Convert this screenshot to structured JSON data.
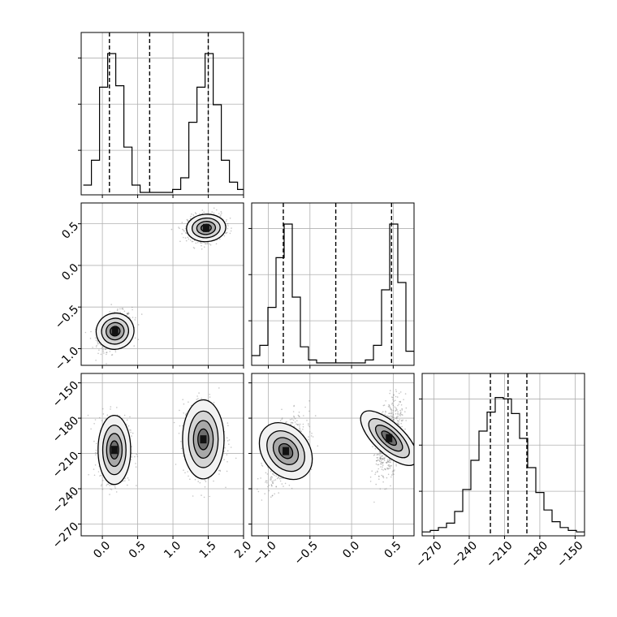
{
  "chart_data": {
    "type": "corner",
    "colors": {
      "line": "#000000",
      "grid": "#b0b0b0",
      "points": "#7f7f7f"
    },
    "grid": true,
    "parameters": [
      {
        "range": [
          -0.3,
          2.0
        ],
        "ticks": [
          "0.0",
          "0.5",
          "1.0",
          "1.5",
          "2.0"
        ],
        "tick_values": [
          0.0,
          0.5,
          1.0,
          1.5,
          2.0
        ]
      },
      {
        "range": [
          -1.2,
          0.75
        ],
        "ticks": [
          "-1.0",
          "-0.5",
          "0.0",
          "0.5"
        ],
        "tick_values": [
          -1.0,
          -0.5,
          0.0,
          0.5
        ]
      },
      {
        "range": [
          -280,
          -142
        ],
        "ticks": [
          "-270",
          "-240",
          "-210",
          "-180",
          "-150"
        ],
        "tick_values": [
          -270,
          -240,
          -210,
          -180,
          -150
        ]
      }
    ],
    "histograms": [
      {
        "param": 0,
        "bins": [
          -0.27,
          -0.155,
          -0.04,
          0.075,
          0.19,
          0.305,
          0.42,
          0.535,
          0.65,
          0.765,
          0.88,
          0.995,
          1.11,
          1.225,
          1.34,
          1.455,
          1.57,
          1.685,
          1.8,
          1.915,
          2.03
        ],
        "counts": [
          0.05,
          0.22,
          0.72,
          0.95,
          0.73,
          0.31,
          0.05,
          0.0,
          0.0,
          0.0,
          0.0,
          0.02,
          0.1,
          0.48,
          0.72,
          0.95,
          0.6,
          0.22,
          0.07,
          0.02
        ],
        "quantiles": [
          0.1,
          0.67,
          1.5
        ]
      },
      {
        "param": 1,
        "bins": [
          -1.2,
          -1.1025,
          -1.005,
          -0.9075,
          -0.81,
          -0.7125,
          -0.615,
          -0.5175,
          -0.42,
          -0.3225,
          -0.225,
          -0.1275,
          -0.03,
          0.0675,
          0.165,
          0.2625,
          0.36,
          0.4575,
          0.555,
          0.6525,
          0.75
        ],
        "counts": [
          0.05,
          0.12,
          0.38,
          0.72,
          0.95,
          0.45,
          0.11,
          0.02,
          0.0,
          0.0,
          0.0,
          0.0,
          0.0,
          0.0,
          0.02,
          0.12,
          0.5,
          0.95,
          0.55,
          0.08
        ],
        "quantiles": [
          -0.82,
          -0.19,
          0.48
        ]
      },
      {
        "param": 2,
        "bins": [
          -280,
          -273.1,
          -266.2,
          -259.3,
          -252.4,
          -245.5,
          -238.6,
          -231.7,
          -224.8,
          -217.9,
          -211,
          -204.1,
          -197.2,
          -190.3,
          -183.4,
          -176.5,
          -169.6,
          -162.7,
          -155.8,
          -148.9,
          -142
        ],
        "counts": [
          0.01,
          0.02,
          0.04,
          0.07,
          0.15,
          0.3,
          0.5,
          0.7,
          0.83,
          0.93,
          0.92,
          0.82,
          0.65,
          0.45,
          0.28,
          0.16,
          0.08,
          0.04,
          0.02,
          0.01
        ],
        "quantiles": [
          -222,
          -207,
          -191
        ]
      }
    ],
    "scatter_panels": [
      {
        "x_param": 0,
        "y_param": 1,
        "clusters": [
          {
            "mx": 0.18,
            "my": -0.79,
            "sx": 0.12,
            "sy": 0.11,
            "rho": 0.35
          },
          {
            "mx": 1.47,
            "my": 0.45,
            "sx": 0.13,
            "sy": 0.08,
            "rho": 0.1
          }
        ]
      },
      {
        "x_param": 0,
        "y_param": 2,
        "clusters": [
          {
            "mx": 0.17,
            "my": -207,
            "sx": 0.11,
            "sy": 14,
            "rho": 0.0
          },
          {
            "mx": 1.43,
            "my": -198,
            "sx": 0.14,
            "sy": 16,
            "rho": 0.0
          }
        ]
      },
      {
        "x_param": 1,
        "y_param": 2,
        "clusters": [
          {
            "mx": -0.79,
            "my": -208,
            "sx": 0.12,
            "sy": 14,
            "rho": 0.55
          },
          {
            "mx": 0.45,
            "my": -197,
            "sx": 0.08,
            "sy": 16,
            "rho": 0.45
          }
        ]
      }
    ]
  }
}
